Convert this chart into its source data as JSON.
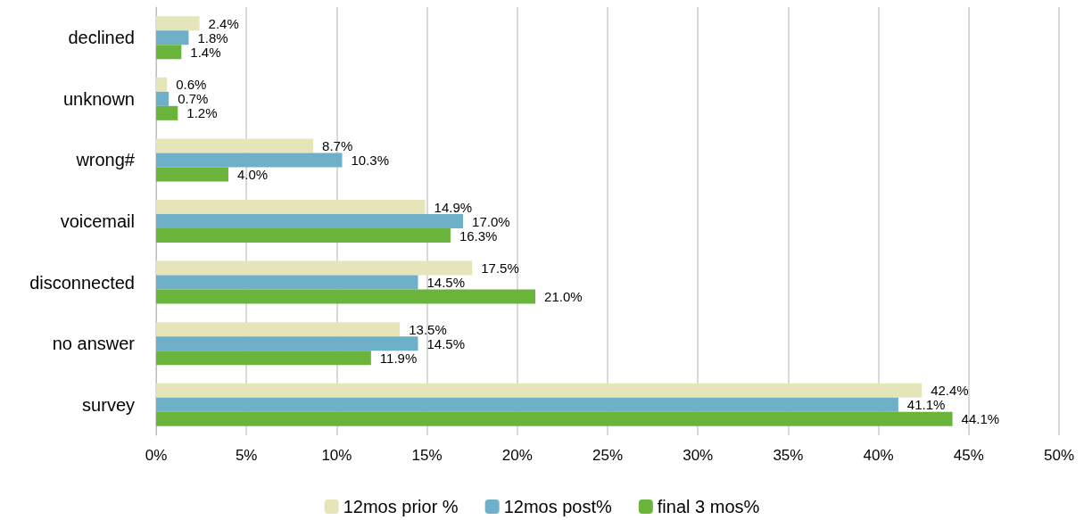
{
  "chart_data": {
    "type": "bar",
    "orientation": "horizontal",
    "categories": [
      "declined",
      "unknown",
      "wrong#",
      "voicemail",
      "disconnected",
      "no answer",
      "survey"
    ],
    "series": [
      {
        "name": "12mos prior %",
        "color": "#e6e4b9",
        "values": [
          2.4,
          0.6,
          8.7,
          14.9,
          17.5,
          13.5,
          42.4
        ],
        "value_labels": [
          "2.4%",
          "0.6%",
          "8.7%",
          "14.9%",
          "17.5%",
          "13.5%",
          "42.4%"
        ]
      },
      {
        "name": "12mos post%",
        "color": "#6eb0c8",
        "values": [
          1.8,
          0.7,
          10.3,
          17.0,
          14.5,
          14.5,
          41.1
        ],
        "value_labels": [
          "1.8%",
          "0.7%",
          "10.3%",
          "17.0%",
          "14.5%",
          "14.5%",
          "41.1%"
        ]
      },
      {
        "name": "final 3 mos%",
        "color": "#6ab43c",
        "values": [
          1.4,
          1.2,
          4.0,
          16.3,
          21.0,
          11.9,
          44.1
        ],
        "value_labels": [
          "1.4%",
          "1.2%",
          "4.0%",
          "16.3%",
          "21.0%",
          "11.9%",
          "44.1%"
        ]
      }
    ],
    "xlim": [
      0,
      50
    ],
    "xticks": [
      {
        "value": 0,
        "label": "0%"
      },
      {
        "value": 5,
        "label": "5%"
      },
      {
        "value": 10,
        "label": "10%"
      },
      {
        "value": 15,
        "label": "15%"
      },
      {
        "value": 20,
        "label": "20%"
      },
      {
        "value": 25,
        "label": "25%"
      },
      {
        "value": 30,
        "label": "30%"
      },
      {
        "value": 35,
        "label": "35%"
      },
      {
        "value": 40,
        "label": "40%"
      },
      {
        "value": 45,
        "label": "45%"
      },
      {
        "value": 50,
        "label": "50%"
      }
    ],
    "grid": "x",
    "legend": "bottom"
  }
}
